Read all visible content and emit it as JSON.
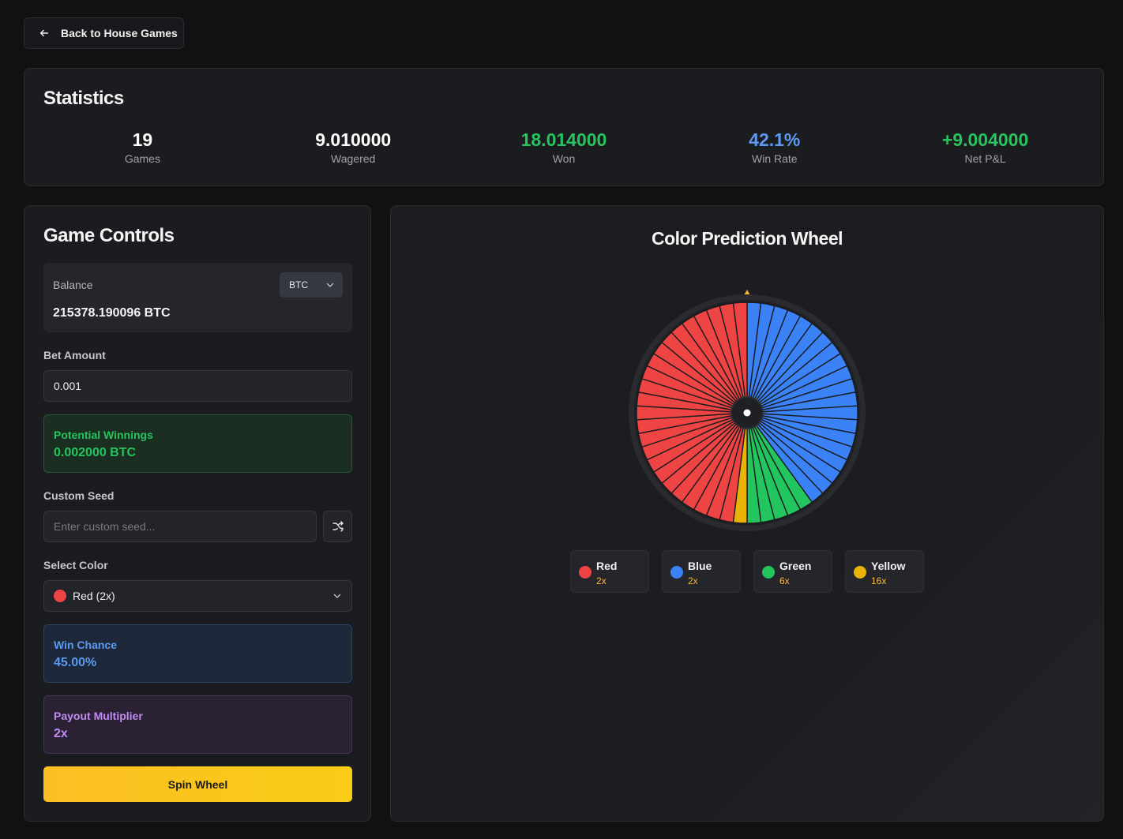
{
  "nav": {
    "back_label": "Back to House Games"
  },
  "statistics": {
    "title": "Statistics",
    "items": [
      {
        "value": "19",
        "label": "Games",
        "color": "#ffffff"
      },
      {
        "value": "9.010000",
        "label": "Wagered",
        "color": "#ffffff"
      },
      {
        "value": "18.014000",
        "label": "Won",
        "color": "#27c45e"
      },
      {
        "value": "42.1%",
        "label": "Win Rate",
        "color": "#5b9af0"
      },
      {
        "value": "+9.004000",
        "label": "Net P&L",
        "color": "#27c45e"
      }
    ]
  },
  "controls": {
    "title": "Game Controls",
    "balance_label": "Balance",
    "currency": "BTC",
    "balance_value": "215378.190096 BTC",
    "bet_label": "Bet Amount",
    "bet_value": "0.001",
    "potential_label": "Potential Winnings",
    "potential_value": "0.002000 BTC",
    "seed_label": "Custom Seed",
    "seed_placeholder": "Enter custom seed...",
    "color_label": "Select Color",
    "color_value": "Red (2x)",
    "win_chance_label": "Win Chance",
    "win_chance_value": "45.00%",
    "payout_label": "Payout Multiplier",
    "payout_value": "2x",
    "spin_label": "Spin Wheel"
  },
  "wheel": {
    "title": "Color Prediction Wheel",
    "segment_counts": {
      "blue": 20,
      "green": 5,
      "yellow": 1,
      "red": 24
    },
    "colors": {
      "red": "#ef4444",
      "blue": "#3b82f6",
      "green": "#22c55e",
      "yellow": "#eab308"
    },
    "legend": [
      {
        "name": "Red",
        "mult": "2x",
        "color": "#ef4444"
      },
      {
        "name": "Blue",
        "mult": "2x",
        "color": "#3b82f6"
      },
      {
        "name": "Green",
        "mult": "6x",
        "color": "#22c55e"
      },
      {
        "name": "Yellow",
        "mult": "16x",
        "color": "#eab308"
      }
    ]
  }
}
